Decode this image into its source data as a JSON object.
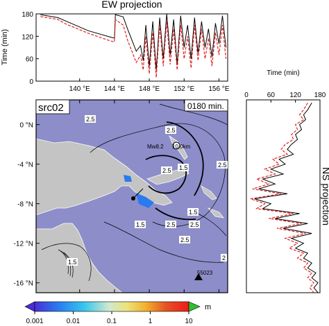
{
  "chart_data": [
    {
      "panel": "ew",
      "type": "line",
      "title": "EW projection",
      "ylabel": "Time (min)",
      "xlim": [
        135,
        157
      ],
      "ylim": [
        0,
        180
      ],
      "x_ticks": [
        140,
        144,
        148,
        152,
        156
      ],
      "x_tick_labels": [
        "140 °E",
        "144 °E",
        "148 °E",
        "152 °E",
        "156 °E"
      ],
      "y_ticks": [
        0,
        60,
        120,
        180
      ],
      "y_tick_labels": [
        "0",
        "60",
        "120",
        "180"
      ],
      "grid": false,
      "legend": "none",
      "series": [
        {
          "color": "#000000",
          "dash": "solid",
          "x": [
            135.5,
            137.5,
            138.5,
            141,
            143.5,
            144,
            144.1,
            145,
            145.5,
            146,
            146.5,
            147,
            147.3,
            147.6,
            148,
            148.4,
            148.8,
            149.2,
            149.6,
            150,
            150.4,
            150.8,
            151.2,
            151.6,
            152,
            152.4,
            152.8,
            153.2,
            153.6,
            154,
            154.4,
            154.8,
            155.2,
            155.6,
            156,
            156.4,
            156.8
          ],
          "y": [
            178,
            170,
            160,
            135,
            118,
            115,
            178,
            172,
            140,
            110,
            80,
            95,
            55,
            150,
            40,
            160,
            30,
            170,
            60,
            180,
            70,
            165,
            45,
            175,
            90,
            150,
            60,
            170,
            75,
            160,
            90,
            140,
            65,
            155,
            100,
            175,
            90
          ]
        },
        {
          "color": "#e02020",
          "dash": "dashed",
          "x": [
            135.5,
            137.5,
            138.5,
            141,
            143.5,
            144,
            144.1,
            145,
            145.5,
            146,
            146.5,
            147,
            147.3,
            147.6,
            148,
            148.4,
            148.8,
            149.2,
            149.6,
            150,
            150.4,
            150.8,
            151.2,
            151.6,
            152,
            152.4,
            152.8,
            153.2,
            153.6,
            154,
            154.4,
            154.8,
            155.2,
            155.6,
            156,
            156.4,
            156.8
          ],
          "y": [
            173,
            165,
            152,
            128,
            108,
            105,
            165,
            150,
            110,
            80,
            50,
            70,
            30,
            120,
            20,
            130,
            10,
            150,
            40,
            160,
            45,
            140,
            30,
            150,
            60,
            120,
            35,
            150,
            55,
            140,
            60,
            115,
            40,
            130,
            70,
            150,
            60
          ]
        }
      ]
    },
    {
      "panel": "ns",
      "type": "line",
      "title": "NS projection",
      "xlabel": "Time (min)",
      "xlim": [
        0,
        180
      ],
      "ylim": [
        -17,
        2.5
      ],
      "x_ticks": [
        0,
        60,
        120,
        180
      ],
      "x_tick_labels": [
        "0",
        "60",
        "120",
        "180"
      ],
      "grid": false,
      "legend": "none",
      "series": [
        {
          "color": "#000000",
          "dash": "solid",
          "lat": [
            2.2,
            1.5,
            1,
            0.5,
            0,
            -0.5,
            -1,
            -1.5,
            -2,
            -2.5,
            -3,
            -3.5,
            -4,
            -4.5,
            -5,
            -5.5,
            -6,
            -6.5,
            -7,
            -7.5,
            -8,
            -8.5,
            -9,
            -9.5,
            -10,
            -10.5,
            -11,
            -11.5,
            -12,
            -12.5,
            -13,
            -13.5,
            -14,
            -14.5,
            -15,
            -15.5,
            -16,
            -16.5,
            -17
          ],
          "t": [
            160,
            150,
            140,
            145,
            130,
            135,
            120,
            125,
            110,
            100,
            115,
            80,
            95,
            60,
            90,
            40,
            70,
            30,
            100,
            20,
            60,
            40,
            130,
            70,
            150,
            90,
            160,
            110,
            140,
            120,
            150,
            140,
            160,
            150,
            170,
            160,
            175,
            165,
            175
          ]
        },
        {
          "color": "#e02020",
          "dash": "dashed",
          "lat": [
            2.2,
            1.5,
            1,
            0.5,
            0,
            -0.5,
            -1,
            -1.5,
            -2,
            -2.5,
            -3,
            -3.5,
            -4,
            -4.5,
            -5,
            -5.5,
            -6,
            -6.5,
            -7,
            -7.5,
            -8,
            -8.5,
            -9,
            -9.5,
            -10,
            -10.5,
            -11,
            -11.5,
            -12,
            -12.5,
            -13,
            -13.5,
            -14,
            -14.5,
            -15,
            -15.5,
            -16,
            -16.5,
            -17
          ],
          "t": [
            150,
            140,
            130,
            140,
            120,
            125,
            110,
            115,
            95,
            85,
            100,
            65,
            80,
            45,
            70,
            25,
            55,
            15,
            85,
            10,
            45,
            25,
            115,
            55,
            135,
            75,
            145,
            95,
            125,
            105,
            140,
            125,
            150,
            140,
            160,
            150,
            165,
            155,
            165
          ]
        }
      ]
    },
    {
      "panel": "map",
      "type": "heatmap",
      "title": "src02",
      "time_label": "0180 min.",
      "xlim": [
        135,
        157
      ],
      "ylim": [
        -17,
        2.5
      ],
      "y_ticks": [
        0,
        -4,
        -8,
        -12,
        -16
      ],
      "y_tick_labels": [
        "0 °N",
        "-4 °N",
        "-8 °N",
        "-12 °N",
        "-16 °N"
      ],
      "contour_labels": [
        "2.5",
        "2.5",
        "1.5",
        "2.5",
        "2.5",
        "1.5",
        "1.5",
        "2.5",
        "2.5",
        "2.5",
        "2",
        "1.5"
      ],
      "annotations": [
        "Mw8.2",
        "10.0km",
        "55023"
      ],
      "colors": {
        "sea": "#8c8dc9",
        "land": "#c4c4c4"
      }
    },
    {
      "panel": "colorbar",
      "type": "heatmap",
      "unit": "m",
      "tick_labels": [
        "0.001",
        "0.01",
        "0.1",
        "1",
        "10"
      ],
      "colors": [
        "#5522dd",
        "#2a6cf0",
        "#33c0ee",
        "#c8e4c8",
        "#e8e27a",
        "#f2b531",
        "#e05a23",
        "#f01d1d",
        "#2ec02e"
      ]
    }
  ]
}
